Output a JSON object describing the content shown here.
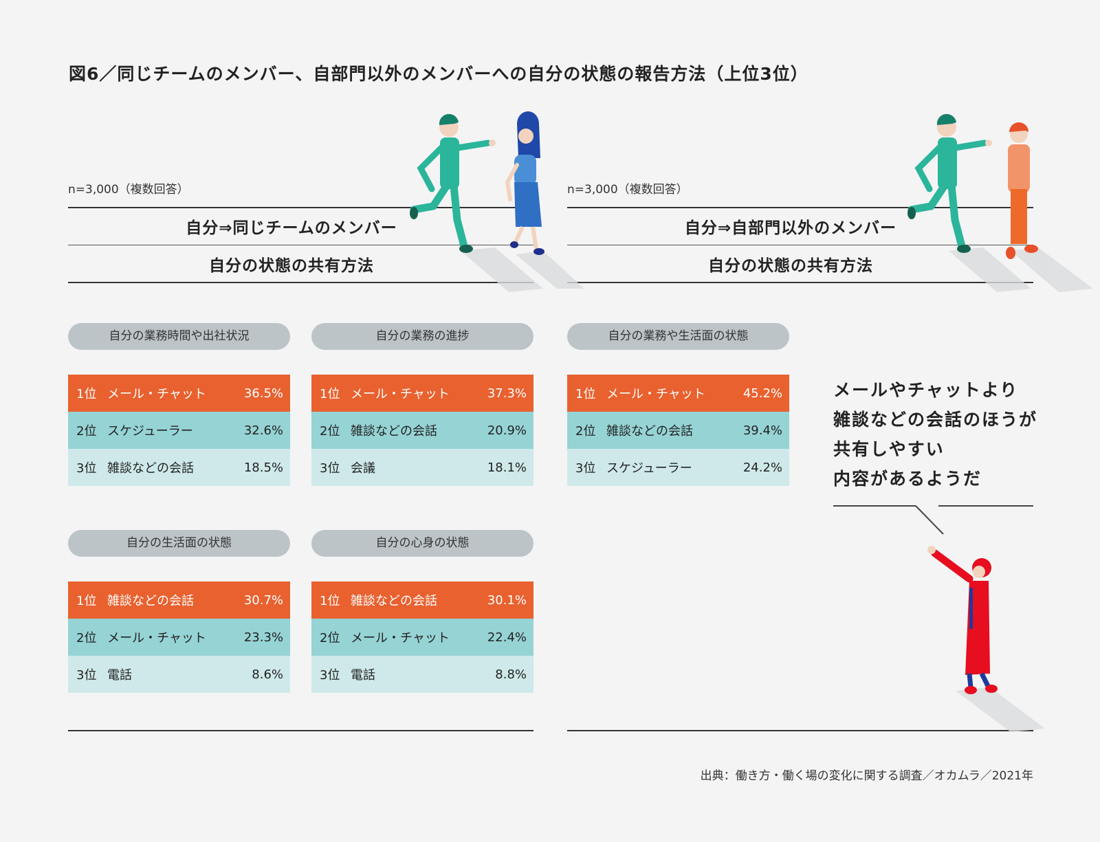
{
  "title": "図6／同じチームのメンバー、自部門以外のメンバーへの自分の状態の報告方法（上位3位）",
  "colors": {
    "rank1": "#e8612f",
    "rank2": "#96d3d5",
    "rank3": "#cfe9ea",
    "pill": "#bcc4c8",
    "background": "#f4f4f4"
  },
  "left": {
    "sample": "n=3,000（複数回答）",
    "header1": "自分⇒同じチームのメンバー",
    "header2": "自分の状態の共有方法"
  },
  "right": {
    "sample": "n=3,000（複数回答）",
    "header1": "自分⇒自部門以外のメンバー",
    "header2": "自分の状態の共有方法"
  },
  "chart_data": {
    "type": "table",
    "groups": [
      {
        "panel": "自分⇒同じチームのメンバー",
        "category": "自分の業務時間や出社状況",
        "rows": [
          {
            "rank": "1位",
            "item": "メール・チャット",
            "value": "36.5%"
          },
          {
            "rank": "2位",
            "item": "スケジューラー",
            "value": "32.6%"
          },
          {
            "rank": "3位",
            "item": "雑談などの会話",
            "value": "18.5%"
          }
        ]
      },
      {
        "panel": "自分⇒同じチームのメンバー",
        "category": "自分の業務の進捗",
        "rows": [
          {
            "rank": "1位",
            "item": "メール・チャット",
            "value": "37.3%"
          },
          {
            "rank": "2位",
            "item": "雑談などの会話",
            "value": "20.9%"
          },
          {
            "rank": "3位",
            "item": "会議",
            "value": "18.1%"
          }
        ]
      },
      {
        "panel": "自分⇒自部門以外のメンバー",
        "category": "自分の業務や生活面の状態",
        "rows": [
          {
            "rank": "1位",
            "item": "メール・チャット",
            "value": "45.2%"
          },
          {
            "rank": "2位",
            "item": "雑談などの会話",
            "value": "39.4%"
          },
          {
            "rank": "3位",
            "item": "スケジューラー",
            "value": "24.2%"
          }
        ]
      },
      {
        "panel": "自分⇒同じチームのメンバー",
        "category": "自分の生活面の状態",
        "rows": [
          {
            "rank": "1位",
            "item": "雑談などの会話",
            "value": "30.7%"
          },
          {
            "rank": "2位",
            "item": "メール・チャット",
            "value": "23.3%"
          },
          {
            "rank": "3位",
            "item": "電話",
            "value": "8.6%"
          }
        ]
      },
      {
        "panel": "自分⇒同じチームのメンバー",
        "category": "自分の心身の状態",
        "rows": [
          {
            "rank": "1位",
            "item": "雑談などの会話",
            "value": "30.1%"
          },
          {
            "rank": "2位",
            "item": "メール・チャット",
            "value": "22.4%"
          },
          {
            "rank": "3位",
            "item": "電話",
            "value": "8.8%"
          }
        ]
      }
    ]
  },
  "callout": [
    "メールやチャットより",
    "雑談などの会話のほうが",
    "共有しやすい",
    "内容があるようだ"
  ],
  "source": "出典：働き方・働く場の変化に関する調査／オカムラ／2021年"
}
